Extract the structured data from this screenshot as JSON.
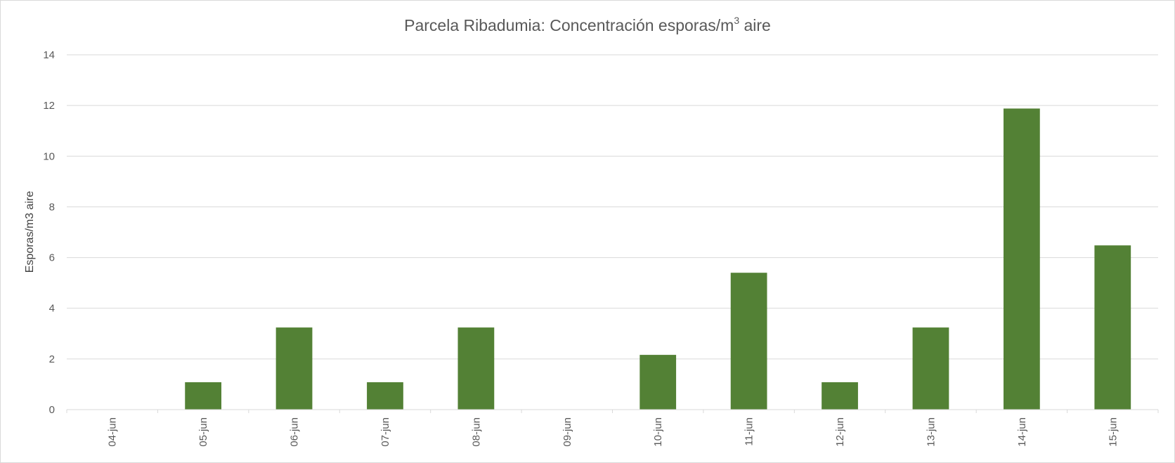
{
  "chart_data": {
    "type": "bar",
    "title_main": "Parcela Ribadumia: Concentración esporas/m",
    "title_sup": "3",
    "title_end": " aire",
    "ylabel": "Esporas/m3 aire",
    "xlabel": "",
    "categories": [
      "04-jun",
      "05-jun",
      "06-jun",
      "07-jun",
      "08-jun",
      "09-jun",
      "10-jun",
      "11-jun",
      "12-jun",
      "13-jun",
      "14-jun",
      "15-jun"
    ],
    "values": [
      0,
      1.08,
      3.24,
      1.08,
      3.24,
      0,
      2.16,
      5.4,
      1.08,
      3.24,
      11.88,
      6.48
    ],
    "ylim": [
      0,
      14
    ],
    "yticks": [
      0,
      2,
      4,
      6,
      8,
      10,
      12,
      14
    ],
    "grid": true,
    "legend": "none",
    "bar_color": "#538135",
    "grid_color": "#d9d9d9"
  }
}
